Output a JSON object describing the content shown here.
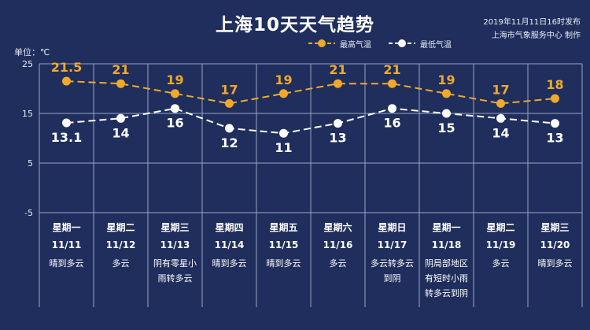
{
  "title": "上海10天天气趋势",
  "publish_time": "2019年11月11日16时发布",
  "publisher": "上海市气象服务中心 制作",
  "unit_label": "单位：℃",
  "colors": {
    "background": "#1f2e5c",
    "high": "#f0a92b",
    "low": "#ffffff",
    "grid": "#9aa6c8"
  },
  "chart_data": {
    "type": "line",
    "title": "上海10天天气趋势",
    "ylabel": "单位：℃",
    "ylim": [
      -5,
      25
    ],
    "yticks": [
      "25",
      "15",
      "5",
      "-5"
    ],
    "grid": true,
    "legend_position": "top-right",
    "categories": [
      "11/11",
      "11/12",
      "11/13",
      "11/14",
      "11/15",
      "11/16",
      "11/17",
      "11/18",
      "11/19",
      "11/20"
    ],
    "series": [
      {
        "name": "最高气温",
        "values": [
          21.5,
          21,
          19,
          17,
          19,
          21,
          21,
          19,
          17,
          18
        ],
        "labels": [
          "21.5",
          "21",
          "19",
          "17",
          "19",
          "21",
          "21",
          "19",
          "17",
          "18"
        ]
      },
      {
        "name": "最低气温",
        "values": [
          13.1,
          14,
          16,
          12,
          11,
          13,
          16,
          15,
          14,
          13
        ],
        "labels": [
          "13.1",
          "14",
          "16",
          "12",
          "11",
          "13",
          "16",
          "15",
          "14",
          "13"
        ]
      }
    ]
  },
  "days": [
    {
      "weekday": "星期一",
      "date": "11/11",
      "weather": "晴到多云"
    },
    {
      "weekday": "星期二",
      "date": "11/12",
      "weather": "多云"
    },
    {
      "weekday": "星期三",
      "date": "11/13",
      "weather": "阴有零星小雨转多云"
    },
    {
      "weekday": "星期四",
      "date": "11/14",
      "weather": "晴到多云"
    },
    {
      "weekday": "星期五",
      "date": "11/15",
      "weather": "晴到多云"
    },
    {
      "weekday": "星期六",
      "date": "11/16",
      "weather": "多云"
    },
    {
      "weekday": "星期日",
      "date": "11/17",
      "weather": "多云转多云到阴"
    },
    {
      "weekday": "星期一",
      "date": "11/18",
      "weather": "阴局部地区有短时小雨转多云到阴"
    },
    {
      "weekday": "星期二",
      "date": "11/19",
      "weather": "多云"
    },
    {
      "weekday": "星期三",
      "date": "11/20",
      "weather": "晴到多云"
    }
  ]
}
